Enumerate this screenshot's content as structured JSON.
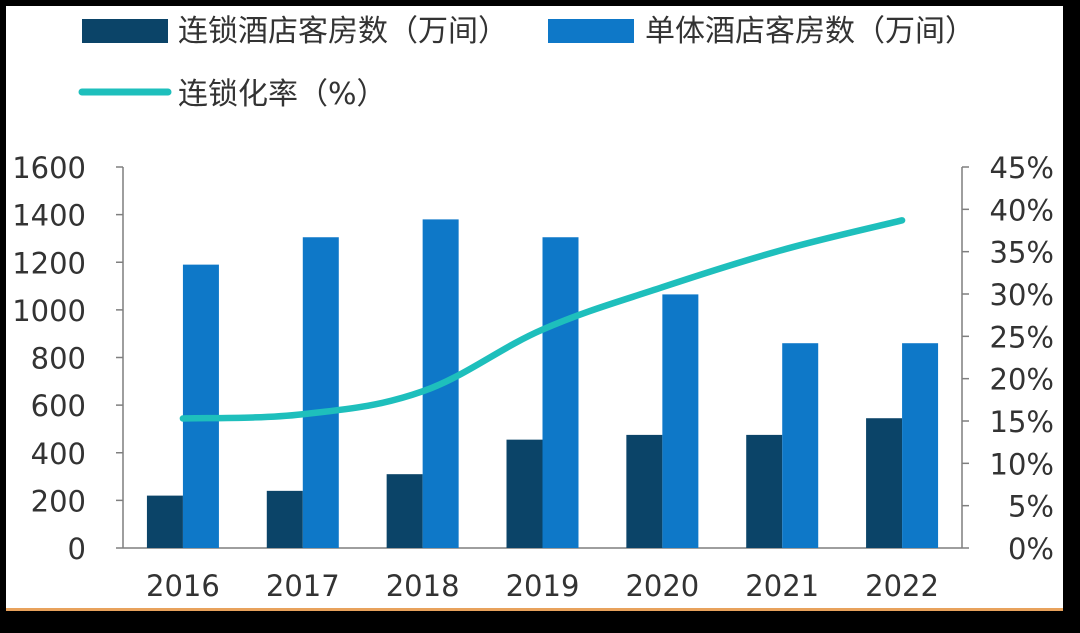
{
  "chart_data": {
    "type": "bar",
    "categories": [
      "2016",
      "2017",
      "2018",
      "2019",
      "2020",
      "2021",
      "2022"
    ],
    "series": [
      {
        "name": "连锁酒店客房数（万间）",
        "type": "bar",
        "axis": "left",
        "color": "#0b4468",
        "values": [
          220,
          240,
          310,
          455,
          475,
          475,
          545
        ]
      },
      {
        "name": "单体酒店客房数（万间）",
        "type": "bar",
        "axis": "left",
        "color": "#0e78c8",
        "values": [
          1190,
          1305,
          1380,
          1305,
          1065,
          860,
          860
        ]
      },
      {
        "name": "连锁化率（%）",
        "type": "line",
        "axis": "right",
        "color": "#1ebfbc",
        "values": [
          15.3,
          15.8,
          18.5,
          25.8,
          30.8,
          35.2,
          38.7
        ]
      }
    ],
    "y_left": {
      "range": [
        0,
        1600
      ],
      "ticks": [
        "0",
        "200",
        "400",
        "600",
        "800",
        "1000",
        "1200",
        "1400",
        "1600"
      ]
    },
    "y_right": {
      "range": [
        0,
        45
      ],
      "ticks": [
        "0%",
        "5%",
        "10%",
        "15%",
        "20%",
        "25%",
        "30%",
        "35%",
        "40%",
        "45%"
      ]
    },
    "grid": false,
    "legend_position": "top-left"
  }
}
